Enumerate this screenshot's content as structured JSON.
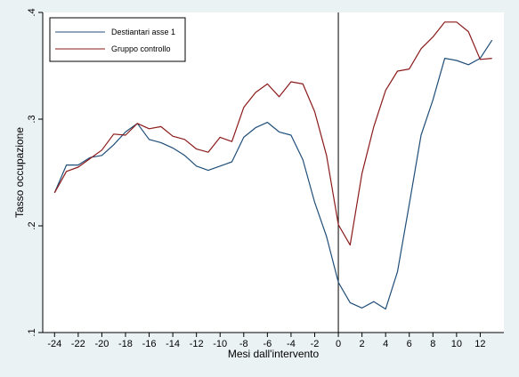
{
  "chart_data": {
    "type": "line",
    "title": "",
    "xlabel": "Mesi dall'intervento",
    "ylabel": "Tasso occupazione",
    "xlim": [
      -25,
      14
    ],
    "ylim": [
      0.1,
      0.4
    ],
    "xticks": [
      -24,
      -22,
      -20,
      -18,
      -16,
      -14,
      -12,
      -10,
      -8,
      -6,
      -4,
      -2,
      0,
      2,
      4,
      6,
      8,
      10,
      12
    ],
    "yticks": [
      {
        "value": 0.1,
        "label": ".1"
      },
      {
        "value": 0.2,
        "label": ".2"
      },
      {
        "value": 0.3,
        "label": ".3"
      },
      {
        "value": 0.4,
        "label": ".4"
      }
    ],
    "vline_x": 0,
    "grid": false,
    "legend_position": "top-left",
    "x": [
      -24,
      -23,
      -22,
      -21,
      -20,
      -19,
      -18,
      -17,
      -16,
      -15,
      -14,
      -13,
      -12,
      -11,
      -10,
      -9,
      -8,
      -7,
      -6,
      -5,
      -4,
      -3,
      -2,
      -1,
      0,
      1,
      2,
      3,
      4,
      5,
      6,
      7,
      8,
      9,
      10,
      11,
      12,
      13
    ],
    "series": [
      {
        "name": "Destiantari asse 1",
        "color": "#1f4e79",
        "values": [
          0.231,
          0.257,
          0.257,
          0.264,
          0.266,
          0.276,
          0.288,
          0.296,
          0.281,
          0.278,
          0.273,
          0.266,
          0.256,
          0.252,
          0.256,
          0.26,
          0.283,
          0.292,
          0.297,
          0.288,
          0.285,
          0.262,
          0.222,
          0.19,
          0.147,
          0.128,
          0.123,
          0.129,
          0.122,
          0.157,
          0.22,
          0.285,
          0.318,
          0.357,
          0.355,
          0.351,
          0.357,
          0.374
        ]
      },
      {
        "name": "Gruppo controllo",
        "color": "#8b1a1a",
        "values": [
          0.231,
          0.251,
          0.255,
          0.263,
          0.271,
          0.286,
          0.285,
          0.296,
          0.291,
          0.293,
          0.284,
          0.281,
          0.272,
          0.269,
          0.283,
          0.279,
          0.311,
          0.325,
          0.333,
          0.321,
          0.335,
          0.333,
          0.307,
          0.266,
          0.201,
          0.182,
          0.249,
          0.293,
          0.327,
          0.345,
          0.347,
          0.366,
          0.377,
          0.391,
          0.391,
          0.382,
          0.356,
          0.357
        ]
      }
    ]
  }
}
